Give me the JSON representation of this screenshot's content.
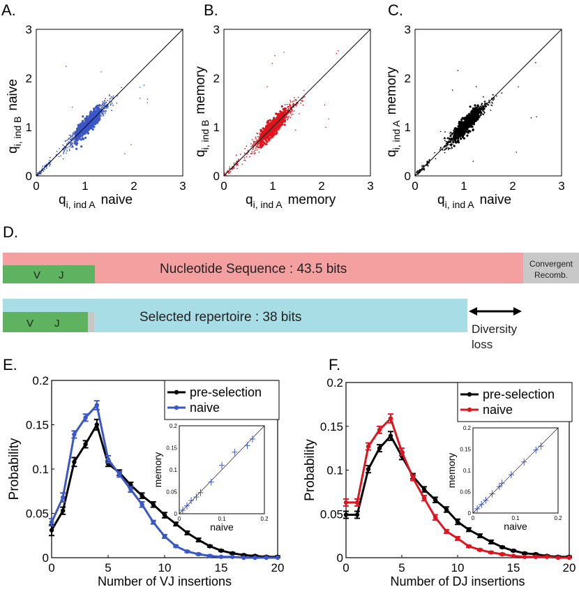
{
  "panels": {
    "A": {
      "label": "A.",
      "xlabel_main": "q",
      "xlabel_sub": "i, ind A",
      "xlabel_suffix": "naive",
      "ylabel_main": "q",
      "ylabel_sub": "i, ind B",
      "ylabel_suffix": "naive"
    },
    "B": {
      "label": "B.",
      "xlabel_main": "q",
      "xlabel_sub": "i, ind A",
      "xlabel_suffix": "memory",
      "ylabel_main": "q",
      "ylabel_sub": "i, ind B",
      "ylabel_suffix": "memory"
    },
    "C": {
      "label": "C.",
      "xlabel_main": "q",
      "xlabel_sub": "i, ind A",
      "xlabel_suffix": "naive",
      "ylabel_main": "q",
      "ylabel_sub": "i, ind A",
      "ylabel_suffix": "memory"
    },
    "D": {
      "label": "D."
    },
    "E": {
      "label": "E."
    },
    "F": {
      "label": "F."
    }
  },
  "scatter_ticks": [
    "0",
    "1",
    "2",
    "3"
  ],
  "diagram": {
    "bar1": {
      "text": "Nucleotide Sequence : 43.5 bits",
      "vj_v": "V",
      "vj_j": "J",
      "side": [
        "Convergent",
        "Recomb."
      ]
    },
    "bar2": {
      "text": "Selected repertoire : 38 bits",
      "vj_v": "V",
      "vj_j": "J"
    },
    "arrow_label": [
      "Diversity",
      "loss"
    ],
    "colors": {
      "pink": "#f4a0a0",
      "green": "#5fb25f",
      "gray": "#c8c8c8",
      "cyan": "#a8dde5"
    }
  },
  "colors": {
    "blue": "#3a57c6",
    "red": "#e0141e",
    "black": "#000000"
  },
  "chart_data": [
    {
      "type": "scatter",
      "panel": "A",
      "title": "",
      "xlabel": "q i, ind A naive",
      "ylabel": "q i, ind B naive",
      "xlim": [
        0,
        3
      ],
      "ylim": [
        0,
        3
      ],
      "diagonal": true,
      "color": "#3a57c6",
      "cluster_center": [
        1.05,
        1.05
      ],
      "cluster_spread": 0.2
    },
    {
      "type": "scatter",
      "panel": "B",
      "title": "",
      "xlabel": "q i, ind A memory",
      "ylabel": "q i, ind B memory",
      "xlim": [
        0,
        3
      ],
      "ylim": [
        0,
        3
      ],
      "diagonal": true,
      "color": "#e0141e",
      "cluster_center": [
        1.0,
        1.0
      ],
      "cluster_spread": 0.22
    },
    {
      "type": "scatter",
      "panel": "C",
      "title": "",
      "xlabel": "q i, ind A naive",
      "ylabel": "q i, ind A memory",
      "xlim": [
        0,
        3
      ],
      "ylim": [
        0,
        3
      ],
      "diagonal": true,
      "color": "#000000",
      "cluster_center": [
        1.05,
        1.1
      ],
      "cluster_spread": 0.2
    },
    {
      "type": "line",
      "panel": "E",
      "xlabel": "Number of VJ insertions",
      "ylabel": "Probability",
      "xlim": [
        0,
        20
      ],
      "ylim": [
        0,
        0.2
      ],
      "xticks": [
        "0",
        "5",
        "10",
        "15",
        "20"
      ],
      "yticks": [
        "0",
        "0.05",
        "0.1",
        "0.15",
        "0.2"
      ],
      "x": [
        0,
        1,
        2,
        3,
        4,
        5,
        6,
        7,
        8,
        9,
        10,
        11,
        12,
        13,
        14,
        15,
        16,
        17,
        18,
        19,
        20
      ],
      "series": [
        {
          "name": "pre-selection",
          "color": "#000000",
          "values": [
            0.031,
            0.053,
            0.108,
            0.128,
            0.15,
            0.106,
            0.096,
            0.082,
            0.07,
            0.06,
            0.048,
            0.038,
            0.028,
            0.02,
            0.013,
            0.008,
            0.005,
            0.003,
            0.002,
            0.001,
            0.001
          ],
          "errors": [
            0.006,
            0.004,
            0.005,
            0.004,
            0.006,
            0.003,
            0.003,
            0.003,
            0.003,
            0.003,
            0.003,
            0.002,
            0.002,
            0.002,
            0.001,
            0.001,
            0.001,
            0.001,
            0.001,
            0.001,
            0.001
          ]
        },
        {
          "name": "naive",
          "color": "#3a57c6",
          "values": [
            0.04,
            0.068,
            0.139,
            0.158,
            0.172,
            0.111,
            0.094,
            0.077,
            0.06,
            0.04,
            0.024,
            0.013,
            0.007,
            0.004,
            0.002,
            0.001,
            0.001,
            0.0,
            0.0,
            0.0,
            0.0
          ],
          "errors": [
            0.004,
            0.005,
            0.004,
            0.004,
            0.005,
            0.004,
            0.003,
            0.003,
            0.003,
            0.002,
            0.002,
            0.001,
            0.001,
            0.001,
            0.001,
            0.0,
            0.0,
            0.0,
            0.0,
            0.0,
            0.0
          ]
        }
      ],
      "legend": "top-right",
      "inset": {
        "xlabel": "naive",
        "ylabel": "memory",
        "xlim": [
          0,
          0.2
        ],
        "ylim": [
          0,
          0.2
        ],
        "xticks": [
          "0",
          "0.1",
          "0.2"
        ],
        "yticks": [
          "0",
          "0.05",
          "0.1",
          "0.15",
          "0.2"
        ],
        "x": [
          0.008,
          0.018,
          0.028,
          0.04,
          0.05,
          0.075,
          0.1,
          0.13,
          0.16,
          0.172
        ],
        "y": [
          0.008,
          0.018,
          0.03,
          0.038,
          0.048,
          0.072,
          0.11,
          0.14,
          0.155,
          0.17
        ],
        "color": "#3a57c6"
      }
    },
    {
      "type": "line",
      "panel": "F",
      "xlabel": "Number of DJ insertions",
      "ylabel": "Probability",
      "xlim": [
        0,
        20
      ],
      "ylim": [
        0,
        0.2
      ],
      "xticks": [
        "0",
        "5",
        "10",
        "15",
        "20"
      ],
      "yticks": [
        "0",
        "0.05",
        "0.1",
        "0.15",
        "0.2"
      ],
      "x": [
        0,
        1,
        2,
        3,
        4,
        5,
        6,
        7,
        8,
        9,
        10,
        11,
        12,
        13,
        14,
        15,
        16,
        17,
        18,
        19,
        20
      ],
      "series": [
        {
          "name": "pre-selection",
          "color": "#000000",
          "values": [
            0.049,
            0.049,
            0.101,
            0.125,
            0.139,
            0.116,
            0.093,
            0.078,
            0.066,
            0.055,
            0.041,
            0.032,
            0.025,
            0.018,
            0.012,
            0.008,
            0.005,
            0.004,
            0.002,
            0.001,
            0.001
          ],
          "errors": [
            0.004,
            0.004,
            0.004,
            0.004,
            0.005,
            0.004,
            0.003,
            0.003,
            0.003,
            0.003,
            0.003,
            0.002,
            0.002,
            0.002,
            0.001,
            0.001,
            0.001,
            0.001,
            0.001,
            0.001,
            0.001
          ]
        },
        {
          "name": "naive",
          "color": "#e0141e",
          "values": [
            0.063,
            0.063,
            0.127,
            0.146,
            0.159,
            0.121,
            0.091,
            0.068,
            0.046,
            0.03,
            0.022,
            0.013,
            0.009,
            0.006,
            0.004,
            0.002,
            0.001,
            0.001,
            0.001,
            0.0,
            0.0
          ],
          "errors": [
            0.004,
            0.004,
            0.004,
            0.004,
            0.005,
            0.004,
            0.003,
            0.003,
            0.003,
            0.002,
            0.002,
            0.001,
            0.001,
            0.001,
            0.001,
            0.0,
            0.0,
            0.0,
            0.0,
            0.0,
            0.0
          ]
        }
      ],
      "legend": "top-right",
      "inset": {
        "xlabel": "naive",
        "ylabel": "memory",
        "xlim": [
          0,
          0.2
        ],
        "ylim": [
          0,
          0.2
        ],
        "xticks": [
          "0",
          "0.1",
          "0.2"
        ],
        "yticks": [
          "0",
          "0.05",
          "0.1",
          "0.15",
          "0.2"
        ],
        "x": [
          0.01,
          0.02,
          0.03,
          0.045,
          0.062,
          0.068,
          0.09,
          0.12,
          0.148,
          0.16
        ],
        "y": [
          0.01,
          0.02,
          0.03,
          0.045,
          0.062,
          0.07,
          0.09,
          0.12,
          0.148,
          0.157
        ],
        "color": "#3a57c6"
      }
    }
  ]
}
